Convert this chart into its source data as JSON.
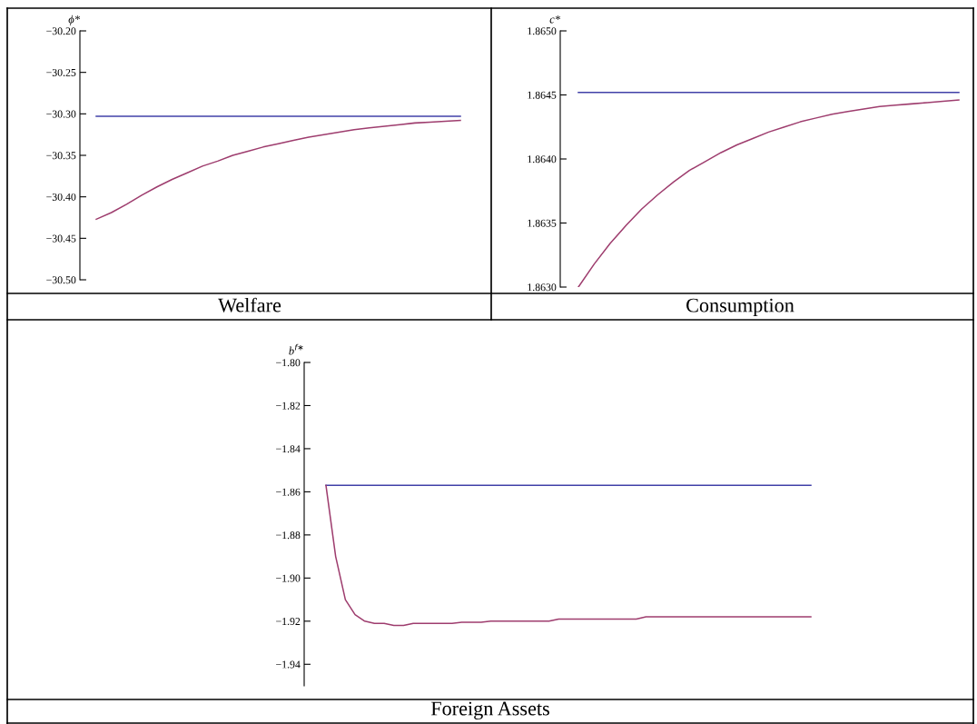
{
  "chart_data": [
    {
      "type": "line",
      "xlabel": "Welfare",
      "ylabel": "ϕ*",
      "categories": [
        null,
        null,
        null,
        null,
        null,
        null,
        null,
        null,
        null,
        null,
        null,
        null,
        null,
        null,
        null,
        null,
        null,
        null,
        null,
        null,
        null,
        null,
        null,
        null,
        null
      ],
      "series": [
        {
          "color": "#4040a8",
          "values": [
            -30.303,
            -30.303,
            -30.303,
            -30.303,
            -30.303,
            -30.303,
            -30.303,
            -30.303,
            -30.303,
            -30.303,
            -30.303,
            -30.303,
            -30.303,
            -30.303,
            -30.303,
            -30.303,
            -30.303,
            -30.303,
            -30.303,
            -30.303,
            -30.303,
            -30.303,
            -30.303,
            -30.303,
            -30.303
          ]
        },
        {
          "color": "#9e3d6e",
          "values": [
            -30.427,
            -30.419,
            -30.409,
            -30.398,
            -30.388,
            -30.379,
            -30.371,
            -30.363,
            -30.357,
            -30.35,
            -30.345,
            -30.34,
            -30.336,
            -30.332,
            -30.328,
            -30.325,
            -30.322,
            -30.319,
            -30.317,
            -30.315,
            -30.313,
            -30.311,
            -30.31,
            -30.309,
            -30.308
          ]
        }
      ],
      "ylim": [
        -30.5,
        -30.2
      ],
      "yticks": [
        {
          "value": -30.5,
          "label": "−30.50"
        },
        {
          "value": -30.45,
          "label": "−30.45"
        },
        {
          "value": -30.4,
          "label": "−30.40"
        },
        {
          "value": -30.35,
          "label": "−30.35"
        },
        {
          "value": -30.3,
          "label": "−30.30"
        },
        {
          "value": -30.25,
          "label": "−30.25"
        },
        {
          "value": -30.2,
          "label": "−30.20"
        }
      ],
      "tick_labels": "y",
      "grid": false
    },
    {
      "type": "line",
      "xlabel": "Consumption",
      "ylabel": "c*",
      "categories": [
        null,
        null,
        null,
        null,
        null,
        null,
        null,
        null,
        null,
        null,
        null,
        null,
        null,
        null,
        null,
        null,
        null,
        null,
        null,
        null,
        null,
        null,
        null,
        null,
        null
      ],
      "series": [
        {
          "color": "#4040a8",
          "values": [
            1.86452,
            1.86452,
            1.86452,
            1.86452,
            1.86452,
            1.86452,
            1.86452,
            1.86452,
            1.86452,
            1.86452,
            1.86452,
            1.86452,
            1.86452,
            1.86452,
            1.86452,
            1.86452,
            1.86452,
            1.86452,
            1.86452,
            1.86452,
            1.86452,
            1.86452,
            1.86452,
            1.86452,
            1.86452
          ]
        },
        {
          "color": "#9e3d6e",
          "values": [
            1.863,
            1.86318,
            1.86334,
            1.86348,
            1.86361,
            1.86372,
            1.86382,
            1.86391,
            1.86398,
            1.86405,
            1.86411,
            1.86416,
            1.86421,
            1.86425,
            1.86429,
            1.86432,
            1.86435,
            1.86437,
            1.86439,
            1.86441,
            1.86442,
            1.86443,
            1.86444,
            1.86445,
            1.86446
          ]
        }
      ],
      "ylim": [
        1.863,
        1.865
      ],
      "yticks": [
        {
          "value": 1.863,
          "label": "1.8630"
        },
        {
          "value": 1.8635,
          "label": "1.8635"
        },
        {
          "value": 1.864,
          "label": "1.8640"
        },
        {
          "value": 1.8645,
          "label": "1.8645"
        },
        {
          "value": 1.865,
          "label": "1.8650"
        }
      ],
      "tick_labels": "y",
      "grid": false
    },
    {
      "type": "line",
      "xlabel": "Foreign Assets",
      "ylabel": "b$^{f∗}$",
      "categories": [
        null,
        null,
        null,
        null,
        null,
        null,
        null,
        null,
        null,
        null,
        null,
        null,
        null,
        null,
        null,
        null,
        null,
        null,
        null,
        null,
        null,
        null,
        null,
        null,
        null,
        null,
        null,
        null,
        null,
        null,
        null,
        null,
        null,
        null,
        null,
        null,
        null,
        null,
        null,
        null,
        null,
        null,
        null,
        null,
        null,
        null,
        null,
        null,
        null,
        null,
        null
      ],
      "series": [
        {
          "color": "#4040a8",
          "values": [
            -1.857,
            -1.857,
            -1.857,
            -1.857,
            -1.857,
            -1.857,
            -1.857,
            -1.857,
            -1.857,
            -1.857,
            -1.857,
            -1.857,
            -1.857,
            -1.857,
            -1.857,
            -1.857,
            -1.857,
            -1.857,
            -1.857,
            -1.857,
            -1.857,
            -1.857,
            -1.857,
            -1.857,
            -1.857,
            -1.857,
            -1.857,
            -1.857,
            -1.857,
            -1.857,
            -1.857,
            -1.857,
            -1.857,
            -1.857,
            -1.857,
            -1.857,
            -1.857,
            -1.857,
            -1.857,
            -1.857,
            -1.857,
            -1.857,
            -1.857,
            -1.857,
            -1.857,
            -1.857,
            -1.857,
            -1.857,
            -1.857,
            -1.857,
            -1.857
          ]
        },
        {
          "color": "#9e3d6e",
          "values": [
            -1.857,
            -1.89,
            -1.91,
            -1.917,
            -1.92,
            -1.921,
            -1.921,
            -1.922,
            -1.922,
            -1.921,
            -1.921,
            -1.921,
            -1.921,
            -1.921,
            -1.9205,
            -1.9205,
            -1.9205,
            -1.92,
            -1.92,
            -1.92,
            -1.92,
            -1.92,
            -1.92,
            -1.92,
            -1.919,
            -1.919,
            -1.919,
            -1.919,
            -1.919,
            -1.919,
            -1.919,
            -1.919,
            -1.919,
            -1.918,
            -1.918,
            -1.918,
            -1.918,
            -1.918,
            -1.918,
            -1.918,
            -1.918,
            -1.918,
            -1.918,
            -1.918,
            -1.918,
            -1.918,
            -1.918,
            -1.918,
            -1.918,
            -1.918,
            -1.918
          ]
        }
      ],
      "ylim": [
        -1.95,
        -1.8
      ],
      "yticks": [
        {
          "value": -1.94,
          "label": "−1.94"
        },
        {
          "value": -1.92,
          "label": "−1.92"
        },
        {
          "value": -1.9,
          "label": "−1.90"
        },
        {
          "value": -1.88,
          "label": "−1.88"
        },
        {
          "value": -1.86,
          "label": "−1.86"
        },
        {
          "value": -1.84,
          "label": "−1.84"
        },
        {
          "value": -1.82,
          "label": "−1.82"
        },
        {
          "value": -1.8,
          "label": "−1.80"
        }
      ],
      "tick_labels": "y",
      "grid": false
    }
  ]
}
